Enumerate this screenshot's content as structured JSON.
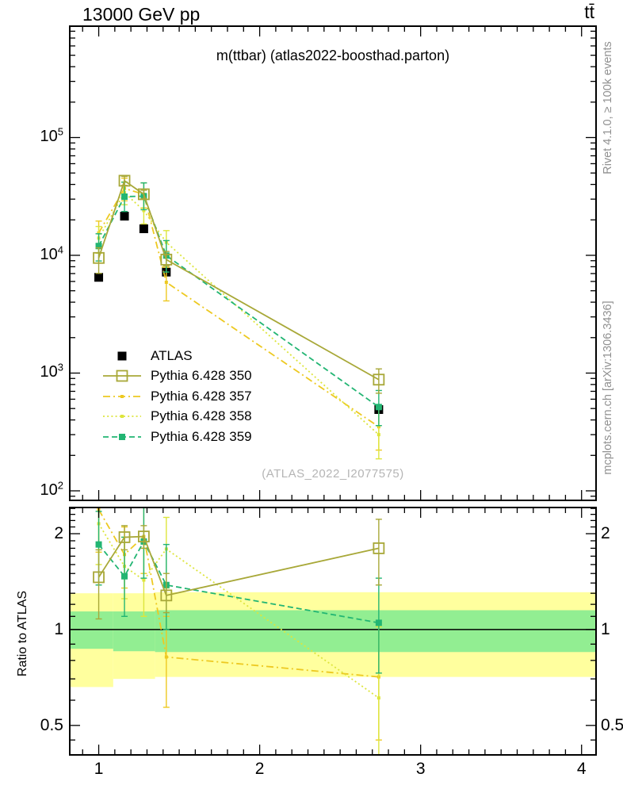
{
  "header": {
    "left_title": "13000 GeV pp",
    "right_title": "tt̄"
  },
  "side_notes": {
    "top": "Rivet 4.1.0, ≥ 100k events",
    "bottom": "mcplots.cern.ch [arXiv:1306.3436]"
  },
  "watermark": "(ATLAS_2022_I2077575)",
  "ratio_ylabel": "Ratio to ATLAS",
  "colors": {
    "atlas": "#000000",
    "p350": "#a8a838",
    "p357": "#edc921",
    "p358": "#dde53c",
    "p359": "#22b573",
    "band_yellow": "#ffff9e",
    "band_green": "#92ee92",
    "frame": "#000000",
    "gray_text": "#909090",
    "watermark_gray": "#b5b5b5"
  },
  "chart_data": {
    "type": "line",
    "title": "m(ttbar) (atlas2022-boosthad.parton)",
    "xlabel": "",
    "ylabel": "",
    "x": [
      1.0,
      1.16,
      1.28,
      1.42,
      2.74
    ],
    "xlim": [
      0.82,
      4.09
    ],
    "x_major_ticks": [
      1,
      2,
      3,
      4
    ],
    "main_panel": {
      "yscale": "log",
      "ylim": [
        83,
        883000
      ],
      "y_major_ticks": [
        100,
        1000,
        10000,
        100000
      ],
      "y_tick_exponents": [
        2,
        3,
        4,
        5
      ]
    },
    "ratio_panel": {
      "yscale": "log",
      "ylim": [
        0.404,
        2.417
      ],
      "y_major_ticks": [
        0.5,
        1,
        2
      ],
      "y_tick_labels": [
        "0.5",
        "1",
        "2"
      ],
      "reference_line": 1,
      "bands": [
        {
          "x0": 0.82,
          "x1": 1.09,
          "yellow": [
            0.66,
            1.3
          ],
          "green": [
            0.87,
            1.14
          ]
        },
        {
          "x0": 1.09,
          "x1": 1.35,
          "yellow": [
            0.7,
            1.3
          ],
          "green": [
            0.855,
            1.14
          ]
        },
        {
          "x0": 1.35,
          "x1": 4.09,
          "yellow": [
            0.71,
            1.31
          ],
          "green": [
            0.85,
            1.15
          ]
        }
      ]
    },
    "series": [
      {
        "name": "ATLAS",
        "color_key": "atlas",
        "line": "none",
        "marker": "filled-square-large",
        "values": [
          6500,
          21500,
          16800,
          7200,
          490
        ],
        "err_frac": 0.05
      },
      {
        "name": "Pythia 6.428 350",
        "color_key": "p350",
        "line": "solid",
        "marker": "open-square",
        "values": [
          9500,
          43000,
          33000,
          9200,
          880
        ],
        "ratio": [
          1.46,
          1.95,
          1.96,
          1.28,
          1.8
        ],
        "ratio_err": [
          [
            1.08,
            1.78
          ],
          [
            1.78,
            2.12
          ],
          [
            1.8,
            2.12
          ],
          [
            1.13,
            1.5
          ],
          [
            1.38,
            2.22
          ]
        ]
      },
      {
        "name": "Pythia 6.428 357",
        "color_key": "p357",
        "line": "dash-dot",
        "marker": "small-dot",
        "values": [
          15500,
          37000,
          33000,
          5900,
          350
        ],
        "ratio": [
          2.38,
          1.72,
          1.96,
          0.82,
          0.71
        ],
        "ratio_err": [
          [
            1.75,
            3.0
          ],
          [
            1.35,
            2.1
          ],
          [
            1.5,
            2.45
          ],
          [
            0.57,
            1.1
          ],
          [
            0.45,
            1.05
          ]
        ]
      },
      {
        "name": "Pythia 6.428 358",
        "color_key": "p358",
        "line": "dotted",
        "marker": "small-dot",
        "values": [
          14000,
          34000,
          24000,
          12900,
          300
        ],
        "ratio": [
          2.15,
          1.58,
          1.43,
          1.79,
          0.61
        ],
        "ratio_err": [
          [
            1.6,
            2.7
          ],
          [
            1.25,
            1.95
          ],
          [
            1.1,
            1.8
          ],
          [
            1.35,
            2.25
          ],
          [
            0.38,
            1.02
          ]
        ]
      },
      {
        "name": "Pythia 6.428 359",
        "color_key": "p359",
        "line": "dashed",
        "marker": "filled-square-small",
        "values": [
          12000,
          31500,
          31800,
          9950,
          515
        ],
        "ratio": [
          1.85,
          1.47,
          1.89,
          1.38,
          1.05
        ],
        "ratio_err": [
          [
            1.38,
            2.35
          ],
          [
            1.1,
            1.95
          ],
          [
            1.45,
            2.45
          ],
          [
            1.0,
            1.85
          ],
          [
            0.73,
            1.45
          ]
        ]
      }
    ],
    "legend_position": "middle-left",
    "grid": false
  }
}
